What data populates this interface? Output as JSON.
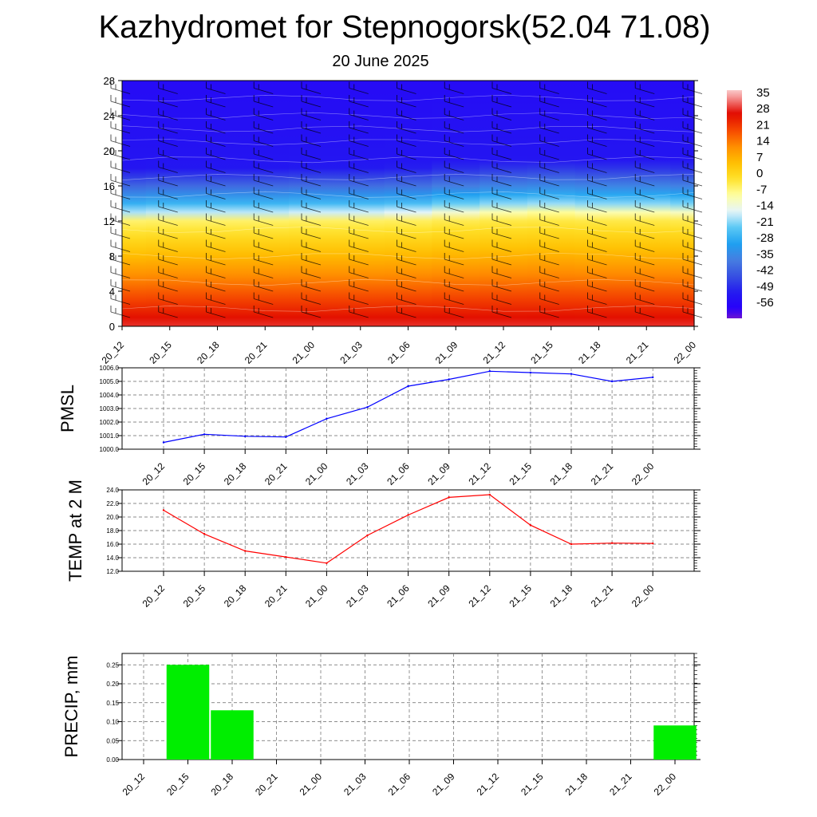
{
  "title": "Kazhydromet for Stepnogorsk(52.04 71.08)",
  "subtitle": "20 June 2025",
  "chart_data": [
    {
      "type": "heatmap",
      "name": "vertical cross-section",
      "x_categories": [
        "20_12",
        "20_15",
        "20_18",
        "20_21",
        "21_00",
        "21_03",
        "21_06",
        "21_09",
        "21_12",
        "21_15",
        "21_18",
        "21_21",
        "22_00"
      ],
      "y_ticks": [
        "0",
        "4",
        "8",
        "12",
        "16",
        "20",
        "24",
        "28"
      ],
      "ylim": [
        0,
        28
      ],
      "colorbar_labels": [
        "35",
        "28",
        "21",
        "14",
        "7",
        "0",
        "-7",
        "-14",
        "-21",
        "-28",
        "-35",
        "-42",
        "-49",
        "-56"
      ],
      "colorbar_range": [
        -60,
        38
      ],
      "freezing_level": [
        12.0,
        12.1,
        12.1,
        12.1,
        12.2,
        12.2,
        12.3,
        12.6,
        12.8,
        12.9,
        12.8,
        12.8,
        12.7
      ],
      "overlay": "wind barbs"
    },
    {
      "type": "line",
      "ylabel": "PMSL",
      "x": [
        "20_12",
        "20_15",
        "20_18",
        "20_21",
        "21_00",
        "21_03",
        "21_06",
        "21_09",
        "21_12",
        "21_15",
        "21_18",
        "21_21",
        "22_00"
      ],
      "values": [
        1000.5,
        1001.1,
        1000.95,
        1000.9,
        1002.25,
        1003.1,
        1004.65,
        1005.15,
        1005.75,
        1005.65,
        1005.55,
        1005.0,
        1005.3
      ],
      "ylim": [
        1000.0,
        1006.0
      ],
      "y_ticks": [
        "1000.0",
        "1001.0",
        "1002.0",
        "1003.0",
        "1004.0",
        "1005.0",
        "1006.0"
      ],
      "color": "#0000ff",
      "grid": true
    },
    {
      "type": "line",
      "ylabel": "TEMP at 2 M",
      "x": [
        "20_12",
        "20_15",
        "20_18",
        "20_21",
        "21_00",
        "21_03",
        "21_06",
        "21_09",
        "21_12",
        "21_15",
        "21_18",
        "21_21",
        "22_00"
      ],
      "values": [
        21.0,
        17.5,
        15.0,
        14.1,
        13.2,
        17.3,
        20.3,
        22.9,
        23.3,
        18.8,
        16.0,
        16.15,
        16.1
      ],
      "ylim": [
        12.0,
        24.0
      ],
      "y_ticks": [
        "12.0",
        "14.0",
        "16.0",
        "18.0",
        "20.0",
        "22.0",
        "24.0"
      ],
      "color": "#ff0000",
      "grid": true
    },
    {
      "type": "bar",
      "ylabel": "PRECIP, mm",
      "categories": [
        "20_12",
        "20_15",
        "20_18",
        "20_21",
        "21_00",
        "21_03",
        "21_06",
        "21_09",
        "21_12",
        "21_15",
        "21_18",
        "21_21",
        "22_00"
      ],
      "values": [
        0,
        0.25,
        0.13,
        0,
        0,
        0,
        0,
        0,
        0,
        0,
        0,
        0,
        0.09
      ],
      "ylim": [
        0,
        0.28
      ],
      "y_ticks": [
        "0.00",
        "0.05",
        "0.10",
        "0.15",
        "0.20",
        "0.25"
      ],
      "color": "#00ee00",
      "grid": true
    }
  ]
}
